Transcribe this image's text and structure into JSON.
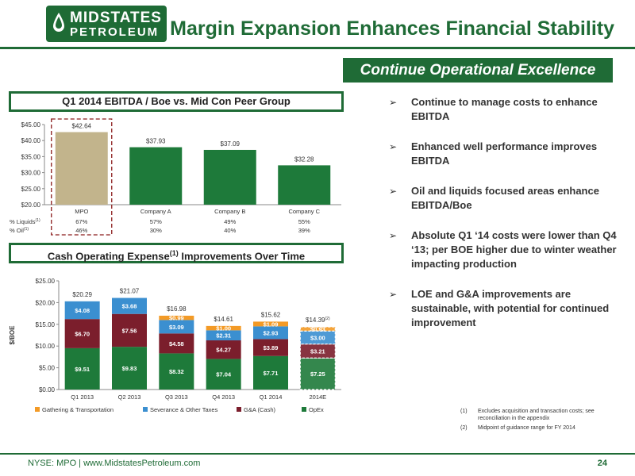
{
  "logo": {
    "line1": "MIDSTATES",
    "line2": "PETROLEUM"
  },
  "title": "Margin Expansion Enhances Financial Stability",
  "section_banner": "Continue Operational Excellence",
  "panel1_title": "Q1 2014 EBITDA / Boe vs. Mid Con Peer Group",
  "panel2_title_pre": "Cash Operating Expense",
  "panel2_title_sup": "(1)",
  "panel2_title_post": " Improvements Over Time",
  "bullets": [
    "Continue to manage costs to enhance EBITDA",
    "Enhanced well performance improves EBITDA",
    "Oil and liquids focused areas enhance EBITDA/Boe",
    "Absolute Q1 ‘14 costs were lower than Q4 ‘13; per BOE higher due to winter weather impacting production",
    "LOE and G&A improvements are sustainable, with potential for continued improvement"
  ],
  "footnotes": [
    {
      "num": "(1)",
      "text": "Excludes acquisition and transaction costs; see reconciliation in the appendix"
    },
    {
      "num": "(2)",
      "text": "Midpoint of guidance range for FY 2014"
    }
  ],
  "footer": {
    "text": "NYSE: MPO | www.MidstatesPetroleum.com",
    "page": "24"
  },
  "colors": {
    "brand_green": "#1f6b36",
    "mpo_bar": "#c2b48c",
    "peer_bar": "#1e7a3a"
  },
  "chart_data": [
    {
      "type": "bar",
      "title": "Q1 2014 EBITDA / Boe vs. Mid Con Peer Group",
      "categories": [
        "MPO",
        "Company A",
        "Company B",
        "Company C"
      ],
      "values": [
        42.64,
        37.93,
        37.09,
        32.28
      ],
      "value_labels": [
        "$42.64",
        "$37.93",
        "$37.09",
        "$32.28"
      ],
      "ylim": [
        20,
        45
      ],
      "yticks": [
        20,
        25,
        30,
        35,
        40,
        45
      ],
      "ytick_labels": [
        "$20.00",
        "$25.00",
        "$30.00",
        "$35.00",
        "$40.00",
        "$45.00"
      ],
      "highlight": "MPO",
      "table_rows": [
        {
          "label": "% Liquids",
          "sup": "(1)",
          "values": [
            "67%",
            "57%",
            "49%",
            "55%"
          ]
        },
        {
          "label": "% Oil",
          "sup": "(1)",
          "values": [
            "46%",
            "30%",
            "40%",
            "39%"
          ]
        }
      ]
    },
    {
      "type": "bar",
      "stacked": true,
      "title": "Cash Operating Expense(1) Improvements Over Time",
      "ylabel": "$/BOE",
      "categories": [
        "Q1 2013",
        "Q2 2013",
        "Q3 2013",
        "Q4 2013",
        "Q1 2014",
        "2014E"
      ],
      "ylim": [
        0,
        25
      ],
      "yticks": [
        0,
        5,
        10,
        15,
        20,
        25
      ],
      "ytick_labels": [
        "$0.00",
        "$5.00",
        "$10.00",
        "$15.00",
        "$20.00",
        "$25.00"
      ],
      "series": [
        {
          "name": "OpEx",
          "color": "#1e7a3a",
          "values": [
            9.51,
            9.83,
            8.32,
            7.04,
            7.71,
            7.25
          ],
          "labels": [
            "$9.51",
            "$9.83",
            "$8.32",
            "$7.04",
            "$7.71",
            "$7.25"
          ]
        },
        {
          "name": "G&A (Cash)",
          "color": "#7b1e2c",
          "values": [
            6.7,
            7.56,
            4.58,
            4.27,
            3.89,
            3.21
          ],
          "labels": [
            "$6.70",
            "$7.56",
            "$4.58",
            "$4.27",
            "$3.89",
            "$3.21"
          ]
        },
        {
          "name": "Severance & Other Taxes",
          "color": "#3b8fd0",
          "values": [
            4.08,
            3.68,
            3.09,
            2.31,
            2.93,
            3.0
          ],
          "labels": [
            "$4.08",
            "$3.68",
            "$3.09",
            "$2.31",
            "$2.93",
            "$3.00"
          ]
        },
        {
          "name": "Gathering & Transportation",
          "color": "#f39a26",
          "values": [
            0,
            0,
            0.99,
            1.0,
            1.09,
            0.93
          ],
          "labels": [
            "",
            "",
            "$0.99",
            "$1.00",
            "$1.09",
            "$0.93"
          ]
        }
      ],
      "legend_order": [
        "Gathering & Transportation",
        "Severance & Other Taxes",
        "G&A (Cash)",
        "OpEx"
      ],
      "legend_placement": "bottom",
      "totals": [
        "$20.29",
        "$21.07",
        "$16.98",
        "$14.61",
        "$15.62",
        "$14.39"
      ],
      "total_sups": [
        "",
        "",
        "",
        "",
        "",
        "(2)"
      ],
      "dashed_category": "2014E"
    }
  ]
}
